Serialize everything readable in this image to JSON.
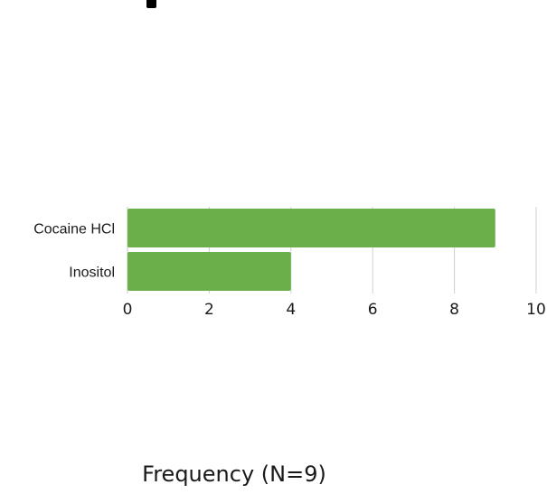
{
  "chart_data": {
    "type": "bar",
    "orientation": "horizontal",
    "categories": [
      "Cocaine HCl",
      "Inositol"
    ],
    "values": [
      9,
      4
    ],
    "xlabel": "Frequency (N=9)",
    "ylabel": "",
    "xlim": [
      0,
      10
    ],
    "xticks": [
      "0",
      "2",
      "4",
      "6",
      "8",
      "10"
    ],
    "grid": true,
    "bar_color": "#6aaf4a",
    "grid_color": "#d0d0d0"
  }
}
